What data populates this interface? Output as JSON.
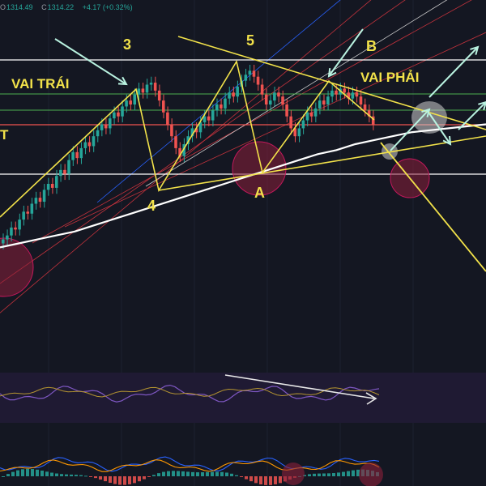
{
  "ohlc": {
    "o_label": "O",
    "o_value": "1314.49",
    "h_label": "",
    "h_value": "",
    "c_label": "C",
    "c_value": "1314.22",
    "change": "+4.17 (+0.32%)"
  },
  "labels": {
    "left_shoulder": "VAI TRÁI",
    "right_shoulder": "VAI PHẢI",
    "wave3": "3",
    "wave4": "4",
    "wave5": "5",
    "waveA": "A",
    "waveB": "B",
    "edge_t": "T"
  },
  "colors": {
    "background": "#141722",
    "panel_rsi": "#1f1a33",
    "candle_up": "#26a69a",
    "candle_down": "#ef5350",
    "annotation": "#f2e24a",
    "white_line": "#ffffff",
    "resistance": "#ef5350",
    "support_green": "#4caf50",
    "channel_red": "#c2323c",
    "channel_blue": "#2962ff",
    "arrow": "#b9f2e0",
    "circle_fill": "#8b1f3a",
    "rsi_line": "#7e57c2",
    "rsi_signal": "#b49431",
    "macd_line": "#2962ff",
    "macd_signal": "#ff9800"
  },
  "chart_data": {
    "type": "candlestick",
    "title": "",
    "xlabel": "",
    "ylabel": "",
    "series": [
      {
        "name": "",
        "type": "candlestick",
        "trend": "uptrend then head-and-shoulders top",
        "closes": [
          12,
          14,
          18,
          17,
          22,
          26,
          25,
          30,
          33,
          31,
          37,
          40,
          38,
          44,
          47,
          45,
          52,
          56,
          53,
          58,
          61,
          59,
          64,
          67,
          70,
          68,
          73,
          76,
          74,
          79,
          82,
          80,
          85,
          88,
          86,
          90,
          91,
          87,
          82,
          76,
          70,
          64,
          58,
          54,
          60,
          64,
          68,
          66,
          71,
          74,
          72,
          77,
          80,
          78,
          83,
          86,
          84,
          89,
          92,
          95,
          97,
          94,
          90,
          85,
          80,
          82,
          86,
          84,
          80,
          74,
          68,
          64,
          68,
          72,
          76,
          74,
          78,
          82,
          80,
          84,
          87,
          85,
          88,
          86,
          83,
          86,
          84,
          80,
          77,
          74,
          70
        ]
      },
      {
        "name": "",
        "type": "moving-average",
        "values": [
          8,
          10,
          12,
          14,
          16,
          19,
          22,
          25,
          28,
          31,
          34,
          37,
          40,
          43,
          46,
          49,
          52,
          55,
          57,
          60,
          62,
          64,
          66,
          67,
          68,
          69,
          70
        ]
      }
    ],
    "panels": [
      {
        "name": "",
        "type": "oscillator",
        "lines": 2
      },
      {
        "name": "",
        "type": "histogram",
        "lines": 2
      }
    ]
  }
}
